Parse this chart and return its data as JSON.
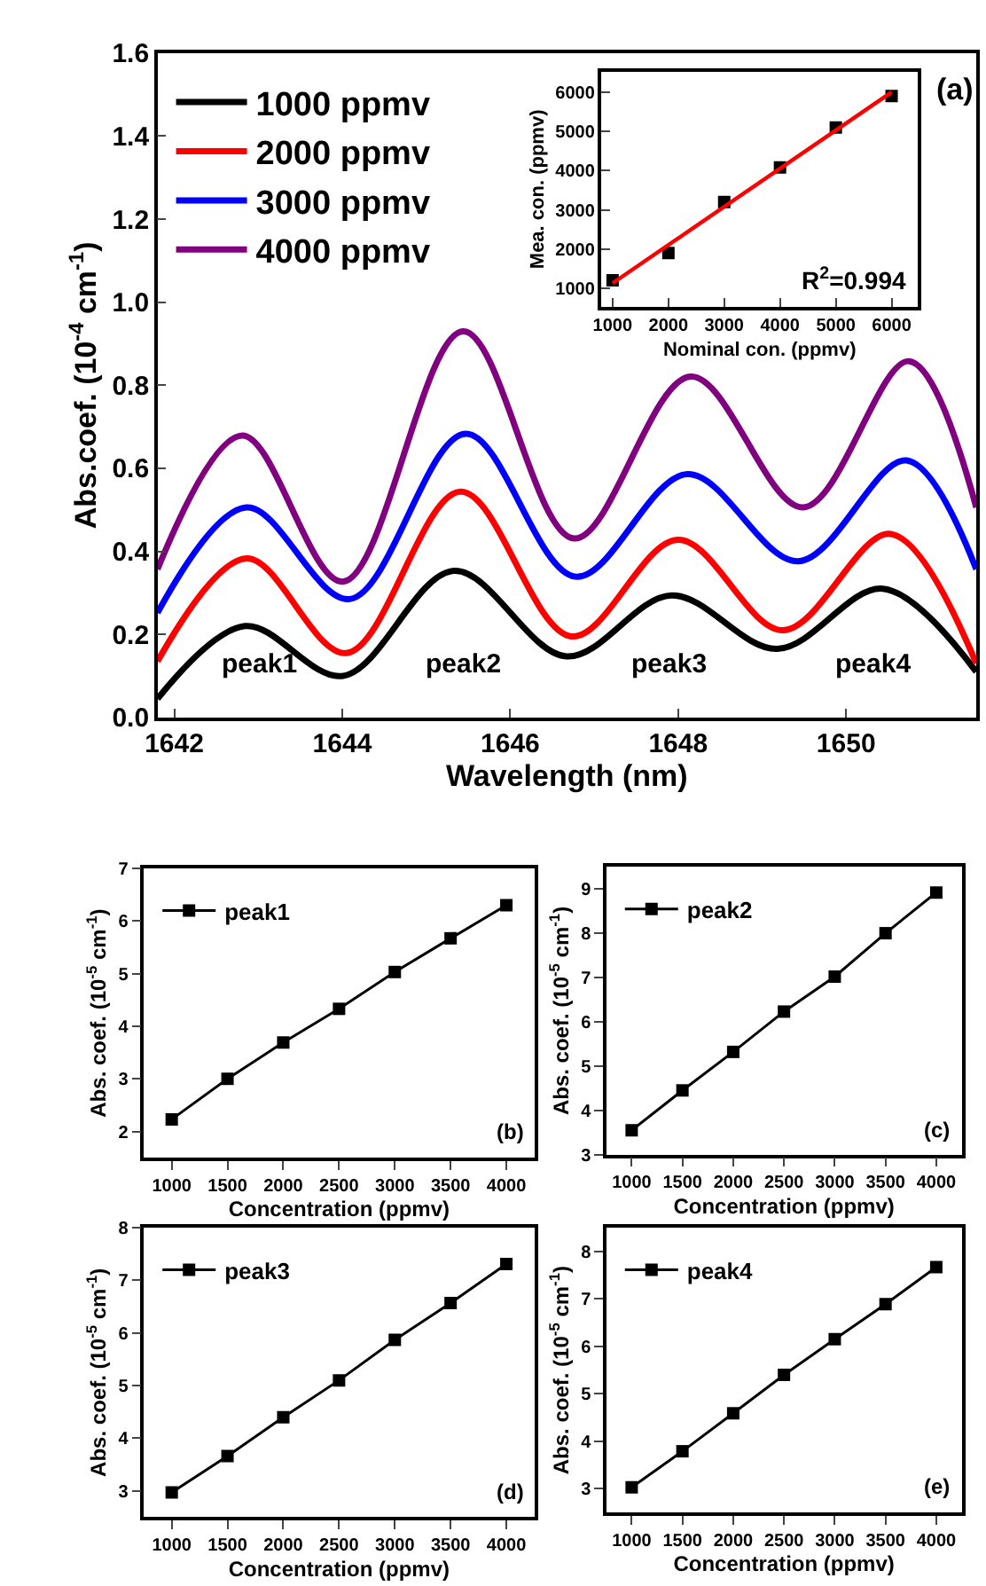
{
  "chart_data": [
    {
      "type": "line",
      "xlabel": "Wavelength (nm)",
      "ylabel": "Abs.coef. (10$^{-4}$ cm$^{-1}$)",
      "xlim": [
        1641.8,
        1651.55
      ],
      "xticks": [
        1642,
        1644,
        1646,
        1648,
        1650
      ],
      "ylim": [
        0,
        1.6
      ],
      "yticks": [
        {
          "value": 0,
          "label": "0.0"
        },
        0.2,
        0.4,
        0.6,
        0.8,
        {
          "value": 1,
          "label": "1.0"
        },
        1.2,
        1.4,
        1.6
      ],
      "legend": "top left",
      "series": [
        {
          "name": "1000 ppmv",
          "color": "#000000",
          "x": [
            1641.8,
            1642.84,
            1644.01,
            1645.33,
            1646.67,
            1647.92,
            1649.18,
            1650.44,
            1651.55
          ],
          "values": [
            0.045,
            0.22,
            0.1,
            0.353,
            0.147,
            0.294,
            0.165,
            0.31,
            0.11
          ]
        },
        {
          "name": "2000 ppmv",
          "color": "#ff0000",
          "x": [
            1641.8,
            1642.86,
            1644.05,
            1645.41,
            1646.73,
            1648.0,
            1649.25,
            1650.53,
            1651.55
          ],
          "values": [
            0.135,
            0.383,
            0.155,
            0.544,
            0.195,
            0.428,
            0.21,
            0.442,
            0.13
          ]
        },
        {
          "name": "3000 ppmv",
          "color": "#0000ff",
          "x": [
            1641.8,
            1642.86,
            1644.09,
            1645.47,
            1646.78,
            1648.11,
            1649.43,
            1650.72,
            1651.55
          ],
          "values": [
            0.252,
            0.506,
            0.285,
            0.683,
            0.339,
            0.586,
            0.376,
            0.619,
            0.357
          ]
        },
        {
          "name": "4000 ppmv",
          "color": "#800080",
          "x": [
            1641.8,
            1642.81,
            1644.01,
            1645.44,
            1646.76,
            1648.15,
            1649.49,
            1650.75,
            1651.55
          ],
          "values": [
            0.357,
            0.679,
            0.327,
            0.93,
            0.431,
            0.821,
            0.506,
            0.858,
            0.506
          ]
        }
      ],
      "annotations": [
        "(a)",
        "peak1",
        "peak2",
        "peak3",
        "peak4"
      ]
    },
    {
      "type": "scatter",
      "xlabel": "Nominal con. (ppmv)",
      "ylabel": "Mea. con. (ppmv)",
      "xlim": [
        800,
        6470
      ],
      "xticks": [
        1000,
        2000,
        3000,
        4000,
        5000,
        6000
      ],
      "ylim": [
        530,
        6520
      ],
      "yticks": [
        1000,
        2000,
        3000,
        4000,
        5000,
        6000
      ],
      "marker": "square",
      "x": [
        1000,
        2000,
        3000,
        4000,
        5000,
        6000
      ],
      "series": [
        {
          "color": "#000000",
          "values": [
            1200,
            1900,
            3200,
            4080,
            5100,
            5900
          ]
        },
        {
          "type": "line",
          "marker": "none",
          "color": "#ff0000",
          "x": [
            1000,
            6000
          ],
          "values": [
            1130,
            6000
          ]
        }
      ],
      "annotations": [
        "R$^{2}$=0.994"
      ]
    },
    {
      "type": "line",
      "xlabel": "Concentration (ppmv)",
      "ylabel": "Abs. coef. (10$^{-5}$ cm$^{-1}$)",
      "xlim": [
        750,
        4250
      ],
      "xticks": [
        1000,
        1500,
        2000,
        2500,
        3000,
        3500,
        4000
      ],
      "ylim": [
        1.5,
        7
      ],
      "yticks": [
        2,
        3,
        4,
        5,
        6,
        7
      ],
      "marker": "square",
      "legend": "top left",
      "x": [
        1000,
        1500,
        2000,
        2500,
        3000,
        3500,
        4000
      ],
      "series": [
        {
          "name": "peak1",
          "color": "#000000",
          "values": [
            2.23,
            3.0,
            3.69,
            4.33,
            5.03,
            5.67,
            6.3
          ]
        }
      ],
      "annotations": [
        "(b)"
      ]
    },
    {
      "type": "line",
      "xlabel": "Concentration (ppmv)",
      "ylabel": "Abs. coef. (10$^{-5}$ cm$^{-1}$)",
      "xlim": [
        750,
        4250
      ],
      "xticks": [
        1000,
        1500,
        2000,
        2500,
        3000,
        3500,
        4000
      ],
      "ylim": [
        3,
        9.5
      ],
      "yticks": [
        3,
        4,
        5,
        6,
        7,
        8,
        9
      ],
      "marker": "square",
      "legend": "top left",
      "x": [
        1000,
        1500,
        2000,
        2500,
        3000,
        3500,
        4000
      ],
      "series": [
        {
          "name": "peak2",
          "color": "#000000",
          "values": [
            3.55,
            4.45,
            5.32,
            6.23,
            7.02,
            8.0,
            8.92
          ]
        }
      ],
      "annotations": [
        "(c)"
      ]
    },
    {
      "type": "line",
      "xlabel": "Concentration (ppmv)",
      "ylabel": "Abs. coef. (10$^{-5}$ cm$^{-1}$)",
      "xlim": [
        750,
        4250
      ],
      "xticks": [
        1000,
        1500,
        2000,
        2500,
        3000,
        3500,
        4000
      ],
      "ylim": [
        2.5,
        8
      ],
      "yticks": [
        3,
        4,
        5,
        6,
        7,
        8
      ],
      "marker": "square",
      "legend": "top left",
      "x": [
        1000,
        1500,
        2000,
        2500,
        3000,
        3500,
        4000
      ],
      "series": [
        {
          "name": "peak3",
          "color": "#000000",
          "values": [
            2.97,
            3.66,
            4.4,
            5.1,
            5.87,
            6.57,
            7.31
          ]
        }
      ],
      "annotations": [
        "(d)"
      ]
    },
    {
      "type": "line",
      "xlabel": "Concentration (ppmv)",
      "ylabel": "Abs. coef. (10$^{-5}$ cm$^{-1}$)",
      "xlim": [
        750,
        4250
      ],
      "xticks": [
        1000,
        1500,
        2000,
        2500,
        3000,
        3500,
        4000
      ],
      "ylim": [
        2.5,
        8.5
      ],
      "yticks": [
        3,
        4,
        5,
        6,
        7,
        8
      ],
      "marker": "square",
      "legend": "top left",
      "x": [
        1000,
        1500,
        2000,
        2500,
        3000,
        3500,
        4000
      ],
      "series": [
        {
          "name": "peak4",
          "color": "#000000",
          "values": [
            3.03,
            3.79,
            4.59,
            5.4,
            6.15,
            6.89,
            7.67
          ]
        }
      ],
      "annotations": [
        "(e)"
      ]
    }
  ]
}
